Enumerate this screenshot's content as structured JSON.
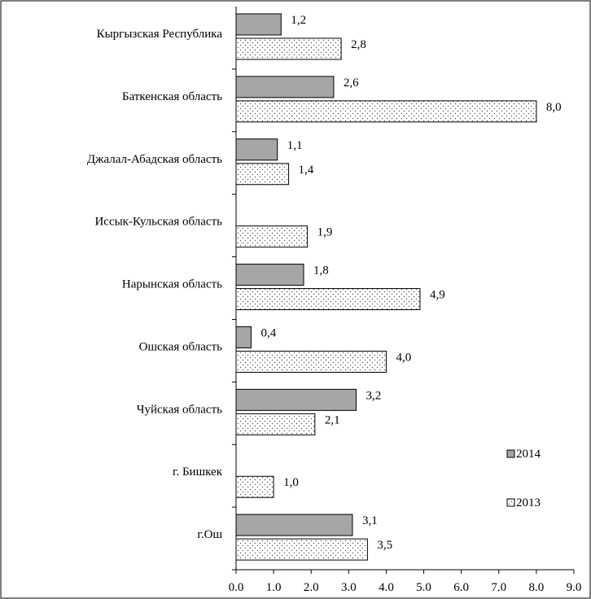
{
  "chart_data": {
    "type": "bar",
    "orientation": "horizontal",
    "categories": [
      "Кыргызская Республика",
      "Баткенская область",
      "Джалал-Абадская область",
      "Иссык-Кульская область",
      "Нарынская  область",
      "Ошская область",
      "Чуйская область",
      "г. Бишкек",
      "г.Ош"
    ],
    "series": [
      {
        "name": "2014",
        "color": "#a6a6a6",
        "pattern": "solid",
        "values": [
          1.2,
          2.6,
          1.1,
          null,
          1.8,
          0.4,
          3.2,
          null,
          3.1
        ],
        "value_labels": [
          "1,2",
          "2,6",
          "1,1",
          "",
          "1,8",
          "0,4",
          "3,2",
          "",
          "3,1"
        ]
      },
      {
        "name": "2013",
        "color": "#ffffff",
        "pattern": "dotted",
        "values": [
          2.8,
          8.0,
          1.4,
          1.9,
          4.9,
          4.0,
          2.1,
          1.0,
          3.5
        ],
        "value_labels": [
          "2,8",
          "8,0",
          "1,4",
          "1,9",
          "4,9",
          "4,0",
          "2,1",
          "1,0",
          "3,5"
        ]
      }
    ],
    "x_ticks": [
      "0.0",
      "1.0",
      "2.0",
      "3.0",
      "4.0",
      "5.0",
      "6.0",
      "7.0",
      "8.0",
      "9.0"
    ],
    "xlim": [
      0,
      9
    ],
    "grid": false,
    "legend_position": "right"
  }
}
